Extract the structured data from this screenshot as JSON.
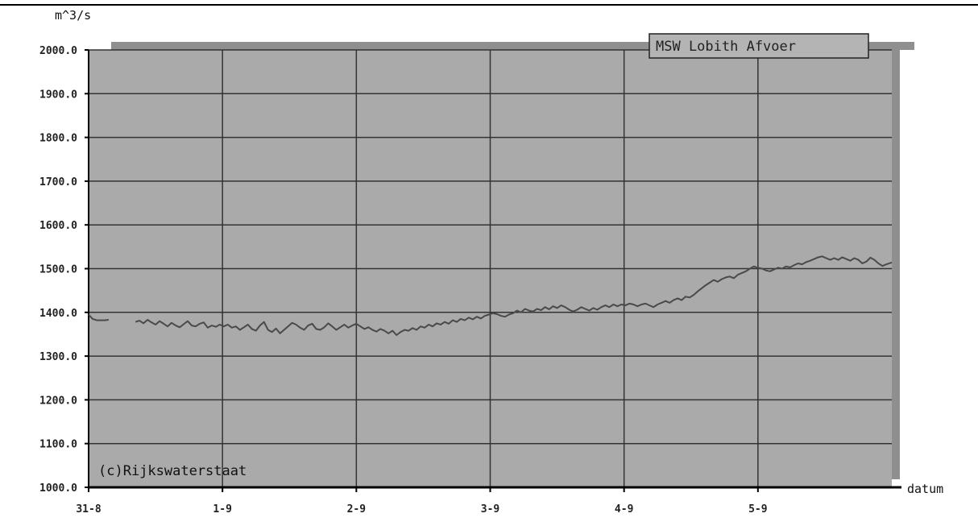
{
  "chart_data": {
    "type": "line",
    "ylabel": "m^3/s",
    "xlabel": "datum",
    "legend": "MSW Lobith Afvoer",
    "legend_position": "top-right",
    "credit": "(c)Rijkswaterstaat",
    "ylim": [
      1000,
      2000
    ],
    "xlim": [
      0,
      6
    ],
    "grid": true,
    "yticks": [
      {
        "value": 2000,
        "label": "2000.0"
      },
      {
        "value": 1900,
        "label": "1900.0"
      },
      {
        "value": 1800,
        "label": "1800.0"
      },
      {
        "value": 1700,
        "label": "1700.0"
      },
      {
        "value": 1600,
        "label": "1600.0"
      },
      {
        "value": 1500,
        "label": "1500.0"
      },
      {
        "value": 1400,
        "label": "1400.0"
      },
      {
        "value": 1300,
        "label": "1300.0"
      },
      {
        "value": 1200,
        "label": "1200.0"
      },
      {
        "value": 1100,
        "label": "1100.0"
      },
      {
        "value": 1000,
        "label": "1000.0"
      }
    ],
    "xticks": [
      {
        "value": 0,
        "label": "31-8"
      },
      {
        "value": 1,
        "label": "1-9"
      },
      {
        "value": 2,
        "label": "2-9"
      },
      {
        "value": 3,
        "label": "3-9"
      },
      {
        "value": 4,
        "label": "4-9"
      },
      {
        "value": 5,
        "label": "5-9"
      }
    ],
    "colors": {
      "plot_bg": "#aaaaaa",
      "shadow": "#8f8f8f",
      "grid": "#333333",
      "line": "#4a4a4a"
    },
    "series": [
      {
        "segments": [
          [
            [
              0.0,
              1395
            ],
            [
              0.03,
              1385
            ],
            [
              0.06,
              1382
            ],
            [
              0.09,
              1382
            ],
            [
              0.12,
              1382
            ],
            [
              0.15,
              1383
            ]
          ],
          [
            [
              0.35,
              1378
            ],
            [
              0.38,
              1381
            ],
            [
              0.41,
              1375
            ],
            [
              0.44,
              1383
            ],
            [
              0.47,
              1377
            ],
            [
              0.5,
              1372
            ],
            [
              0.53,
              1380
            ],
            [
              0.56,
              1374
            ],
            [
              0.59,
              1368
            ],
            [
              0.62,
              1376
            ],
            [
              0.65,
              1370
            ],
            [
              0.68,
              1366
            ],
            [
              0.71,
              1373
            ],
            [
              0.74,
              1380
            ],
            [
              0.77,
              1370
            ],
            [
              0.8,
              1368
            ],
            [
              0.83,
              1374
            ],
            [
              0.86,
              1377
            ],
            [
              0.89,
              1365
            ],
            [
              0.92,
              1370
            ],
            [
              0.95,
              1367
            ],
            [
              0.98,
              1372
            ],
            [
              1.01,
              1368
            ],
            [
              1.04,
              1372
            ],
            [
              1.07,
              1365
            ],
            [
              1.1,
              1368
            ],
            [
              1.13,
              1360
            ],
            [
              1.16,
              1366
            ],
            [
              1.19,
              1372
            ],
            [
              1.22,
              1362
            ],
            [
              1.25,
              1358
            ],
            [
              1.28,
              1370
            ],
            [
              1.31,
              1378
            ],
            [
              1.34,
              1360
            ],
            [
              1.37,
              1355
            ],
            [
              1.4,
              1363
            ],
            [
              1.43,
              1352
            ],
            [
              1.46,
              1360
            ],
            [
              1.49,
              1368
            ],
            [
              1.52,
              1376
            ],
            [
              1.55,
              1372
            ],
            [
              1.58,
              1365
            ],
            [
              1.61,
              1360
            ],
            [
              1.64,
              1370
            ],
            [
              1.67,
              1374
            ],
            [
              1.7,
              1362
            ],
            [
              1.73,
              1360
            ],
            [
              1.76,
              1366
            ],
            [
              1.79,
              1375
            ],
            [
              1.82,
              1368
            ],
            [
              1.85,
              1360
            ],
            [
              1.88,
              1366
            ],
            [
              1.91,
              1372
            ],
            [
              1.94,
              1365
            ],
            [
              1.97,
              1370
            ],
            [
              2.0,
              1374
            ],
            [
              2.03,
              1368
            ],
            [
              2.06,
              1362
            ],
            [
              2.09,
              1366
            ],
            [
              2.12,
              1360
            ],
            [
              2.15,
              1356
            ],
            [
              2.18,
              1362
            ],
            [
              2.21,
              1358
            ],
            [
              2.24,
              1352
            ],
            [
              2.27,
              1358
            ],
            [
              2.3,
              1348
            ],
            [
              2.33,
              1355
            ],
            [
              2.36,
              1360
            ],
            [
              2.39,
              1358
            ],
            [
              2.42,
              1364
            ],
            [
              2.45,
              1360
            ],
            [
              2.48,
              1368
            ],
            [
              2.51,
              1365
            ],
            [
              2.54,
              1372
            ],
            [
              2.57,
              1368
            ],
            [
              2.6,
              1375
            ],
            [
              2.63,
              1372
            ],
            [
              2.66,
              1378
            ],
            [
              2.69,
              1374
            ],
            [
              2.72,
              1382
            ],
            [
              2.75,
              1378
            ],
            [
              2.78,
              1385
            ],
            [
              2.81,
              1382
            ],
            [
              2.84,
              1388
            ],
            [
              2.87,
              1384
            ],
            [
              2.9,
              1390
            ],
            [
              2.93,
              1386
            ],
            [
              2.96,
              1392
            ],
            [
              2.99,
              1395
            ],
            [
              3.02,
              1398
            ],
            [
              3.05,
              1396
            ],
            [
              3.08,
              1392
            ],
            [
              3.11,
              1390
            ],
            [
              3.14,
              1395
            ],
            [
              3.17,
              1398
            ],
            [
              3.2,
              1404
            ],
            [
              3.23,
              1400
            ],
            [
              3.26,
              1408
            ],
            [
              3.29,
              1404
            ],
            [
              3.32,
              1402
            ],
            [
              3.35,
              1408
            ],
            [
              3.38,
              1405
            ],
            [
              3.41,
              1412
            ],
            [
              3.44,
              1407
            ],
            [
              3.47,
              1414
            ],
            [
              3.5,
              1410
            ],
            [
              3.53,
              1416
            ],
            [
              3.56,
              1412
            ],
            [
              3.59,
              1406
            ],
            [
              3.62,
              1402
            ],
            [
              3.65,
              1406
            ],
            [
              3.68,
              1412
            ],
            [
              3.71,
              1408
            ],
            [
              3.74,
              1404
            ],
            [
              3.77,
              1410
            ],
            [
              3.8,
              1406
            ],
            [
              3.83,
              1412
            ],
            [
              3.86,
              1416
            ],
            [
              3.89,
              1412
            ],
            [
              3.92,
              1418
            ],
            [
              3.95,
              1414
            ],
            [
              3.98,
              1418
            ],
            [
              4.01,
              1416
            ],
            [
              4.04,
              1420
            ],
            [
              4.07,
              1418
            ],
            [
              4.1,
              1414
            ],
            [
              4.13,
              1418
            ],
            [
              4.16,
              1420
            ],
            [
              4.19,
              1416
            ],
            [
              4.22,
              1412
            ],
            [
              4.25,
              1418
            ],
            [
              4.28,
              1422
            ],
            [
              4.31,
              1426
            ],
            [
              4.34,
              1422
            ],
            [
              4.37,
              1428
            ],
            [
              4.4,
              1432
            ],
            [
              4.43,
              1428
            ],
            [
              4.46,
              1436
            ],
            [
              4.49,
              1434
            ],
            [
              4.52,
              1440
            ],
            [
              4.55,
              1448
            ],
            [
              4.58,
              1455
            ],
            [
              4.61,
              1462
            ],
            [
              4.64,
              1468
            ],
            [
              4.67,
              1474
            ],
            [
              4.7,
              1470
            ],
            [
              4.73,
              1476
            ],
            [
              4.76,
              1480
            ],
            [
              4.79,
              1482
            ],
            [
              4.82,
              1478
            ],
            [
              4.85,
              1486
            ],
            [
              4.88,
              1490
            ],
            [
              4.91,
              1494
            ],
            [
              4.94,
              1500
            ],
            [
              4.97,
              1505
            ],
            [
              5.0,
              1502
            ],
            [
              5.03,
              1500
            ],
            [
              5.06,
              1496
            ],
            [
              5.09,
              1494
            ],
            [
              5.12,
              1498
            ],
            [
              5.15,
              1502
            ],
            [
              5.18,
              1500
            ],
            [
              5.21,
              1505
            ],
            [
              5.24,
              1503
            ],
            [
              5.27,
              1508
            ],
            [
              5.3,
              1512
            ],
            [
              5.33,
              1510
            ],
            [
              5.36,
              1515
            ],
            [
              5.39,
              1518
            ],
            [
              5.42,
              1522
            ],
            [
              5.45,
              1526
            ],
            [
              5.48,
              1528
            ],
            [
              5.51,
              1524
            ],
            [
              5.54,
              1520
            ],
            [
              5.57,
              1524
            ],
            [
              5.6,
              1520
            ],
            [
              5.63,
              1526
            ],
            [
              5.66,
              1522
            ],
            [
              5.69,
              1518
            ],
            [
              5.72,
              1524
            ],
            [
              5.75,
              1520
            ],
            [
              5.78,
              1512
            ],
            [
              5.81,
              1516
            ],
            [
              5.84,
              1525
            ],
            [
              5.87,
              1520
            ],
            [
              5.9,
              1512
            ],
            [
              5.93,
              1506
            ],
            [
              5.96,
              1510
            ],
            [
              6.0,
              1514
            ]
          ]
        ]
      }
    ]
  }
}
